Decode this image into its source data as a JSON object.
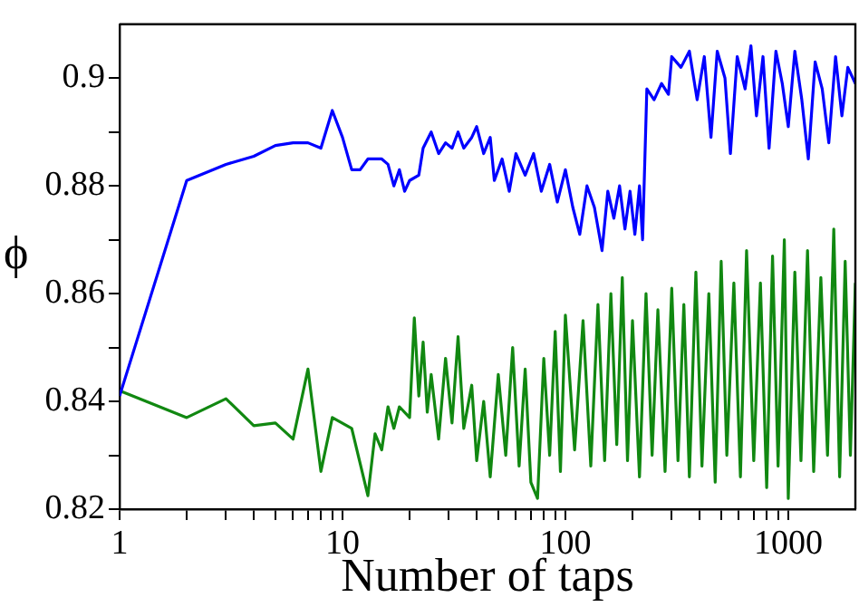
{
  "chart_data": {
    "type": "line",
    "xlabel": "Number of taps",
    "ylabel": "ϕ",
    "log": "x",
    "grid": false,
    "legend": false,
    "marker": "none",
    "line_style": "solid",
    "xlim": [
      1,
      2000
    ],
    "ylim": [
      0.82,
      0.91
    ],
    "xticks": [
      1,
      {
        "value": 2,
        "label": null
      },
      {
        "value": 3,
        "label": null
      },
      {
        "value": 4,
        "label": null
      },
      {
        "value": 5,
        "label": null
      },
      {
        "value": 6,
        "label": null
      },
      {
        "value": 7,
        "label": null
      },
      {
        "value": 8,
        "label": null
      },
      {
        "value": 9,
        "label": null
      },
      10,
      {
        "value": 20,
        "label": null
      },
      {
        "value": 30,
        "label": null
      },
      {
        "value": 40,
        "label": null
      },
      {
        "value": 50,
        "label": null
      },
      {
        "value": 60,
        "label": null
      },
      {
        "value": 70,
        "label": null
      },
      {
        "value": 80,
        "label": null
      },
      {
        "value": 90,
        "label": null
      },
      100,
      {
        "value": 200,
        "label": null
      },
      {
        "value": 300,
        "label": null
      },
      {
        "value": 400,
        "label": null
      },
      {
        "value": 500,
        "label": null
      },
      {
        "value": 600,
        "label": null
      },
      {
        "value": 700,
        "label": null
      },
      {
        "value": 800,
        "label": null
      },
      {
        "value": 900,
        "label": null
      },
      1000
    ],
    "yticks": [
      0.82,
      {
        "value": 0.83,
        "label": null
      },
      0.84,
      {
        "value": 0.85,
        "label": null
      },
      0.86,
      {
        "value": 0.87,
        "label": null
      },
      0.88,
      {
        "value": 0.89,
        "label": null
      },
      0.9
    ],
    "series": [
      {
        "color": "#0000ff",
        "x": [
          1,
          2,
          3,
          4,
          5,
          6,
          7,
          8,
          9,
          10,
          11,
          12,
          13,
          15,
          16,
          17,
          18,
          19,
          20,
          22,
          23,
          25,
          27,
          29,
          31,
          33,
          35,
          38,
          40,
          43,
          46,
          48,
          52,
          56,
          60,
          66,
          72,
          78,
          85,
          92,
          100,
          108,
          116,
          125,
          135,
          146,
          155,
          165,
          175,
          185,
          195,
          205,
          215,
          222,
          232,
          250,
          270,
          290,
          300,
          330,
          360,
          390,
          420,
          450,
          480,
          520,
          550,
          590,
          640,
          680,
          720,
          770,
          820,
          880,
          940,
          1000,
          1070,
          1150,
          1230,
          1320,
          1420,
          1520,
          1630,
          1740,
          1850,
          2000
        ],
        "values": [
          0.841,
          0.881,
          0.884,
          0.8855,
          0.8875,
          0.888,
          0.888,
          0.887,
          0.894,
          0.889,
          0.883,
          0.883,
          0.885,
          0.885,
          0.884,
          0.88,
          0.883,
          0.879,
          0.881,
          0.882,
          0.887,
          0.89,
          0.886,
          0.888,
          0.887,
          0.89,
          0.887,
          0.889,
          0.891,
          0.886,
          0.889,
          0.881,
          0.885,
          0.879,
          0.886,
          0.882,
          0.886,
          0.879,
          0.884,
          0.877,
          0.883,
          0.876,
          0.871,
          0.88,
          0.876,
          0.868,
          0.879,
          0.874,
          0.88,
          0.872,
          0.879,
          0.871,
          0.88,
          0.87,
          0.898,
          0.896,
          0.899,
          0.897,
          0.904,
          0.902,
          0.905,
          0.896,
          0.904,
          0.889,
          0.905,
          0.9,
          0.886,
          0.904,
          0.898,
          0.906,
          0.893,
          0.904,
          0.887,
          0.905,
          0.899,
          0.891,
          0.905,
          0.896,
          0.885,
          0.903,
          0.898,
          0.888,
          0.904,
          0.893,
          0.902,
          0.899
        ]
      },
      {
        "color": "#118811",
        "x": [
          1,
          2,
          3,
          4,
          5,
          6,
          7,
          8,
          9,
          11,
          13,
          14,
          15,
          16,
          17,
          18,
          20,
          21,
          22,
          23,
          24,
          25,
          27,
          29,
          31,
          33,
          35,
          38,
          40,
          43,
          46,
          50,
          54,
          58,
          62,
          66,
          70,
          75,
          80,
          85,
          90,
          95,
          100,
          110,
          120,
          130,
          140,
          150,
          160,
          170,
          180,
          190,
          200,
          215,
          230,
          245,
          260,
          280,
          300,
          320,
          340,
          360,
          385,
          410,
          440,
          470,
          500,
          530,
          570,
          610,
          650,
          700,
          750,
          800,
          850,
          900,
          960,
          1000,
          1070,
          1140,
          1220,
          1300,
          1400,
          1500,
          1600,
          1700,
          1800,
          1900,
          2000
        ],
        "values": [
          0.842,
          0.837,
          0.8405,
          0.8355,
          0.836,
          0.833,
          0.846,
          0.827,
          0.837,
          0.835,
          0.8225,
          0.834,
          0.831,
          0.839,
          0.835,
          0.839,
          0.837,
          0.8555,
          0.841,
          0.851,
          0.838,
          0.845,
          0.833,
          0.848,
          0.836,
          0.852,
          0.835,
          0.843,
          0.829,
          0.84,
          0.826,
          0.845,
          0.83,
          0.85,
          0.828,
          0.846,
          0.825,
          0.822,
          0.848,
          0.83,
          0.853,
          0.827,
          0.856,
          0.831,
          0.855,
          0.828,
          0.858,
          0.829,
          0.86,
          0.832,
          0.863,
          0.829,
          0.855,
          0.826,
          0.86,
          0.83,
          0.857,
          0.827,
          0.861,
          0.829,
          0.858,
          0.826,
          0.864,
          0.828,
          0.86,
          0.825,
          0.866,
          0.83,
          0.862,
          0.826,
          0.868,
          0.829,
          0.862,
          0.824,
          0.867,
          0.828,
          0.87,
          0.822,
          0.864,
          0.829,
          0.868,
          0.827,
          0.863,
          0.83,
          0.872,
          0.826,
          0.866,
          0.83,
          0.862
        ]
      }
    ]
  }
}
